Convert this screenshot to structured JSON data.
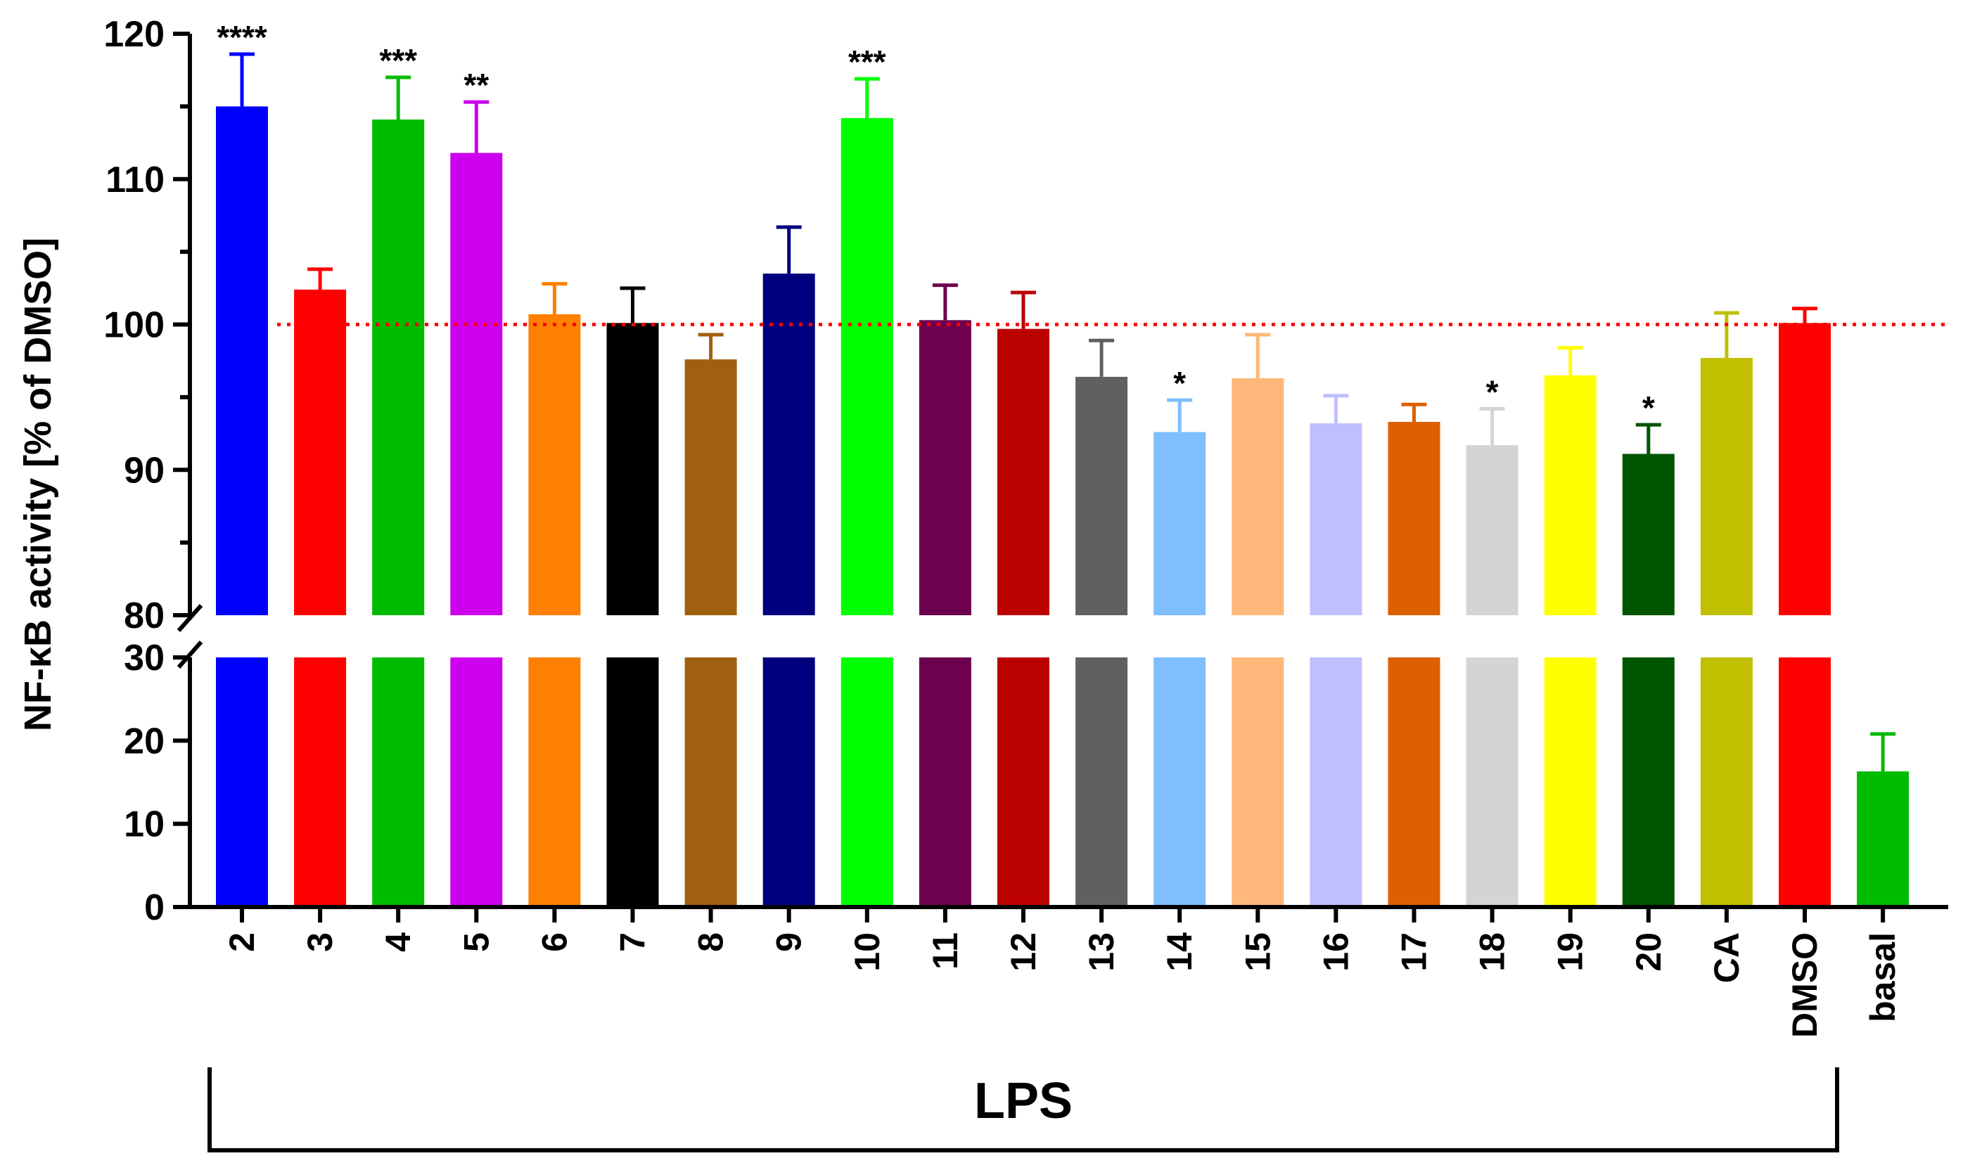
{
  "chart_data": {
    "type": "bar",
    "ylabel": "NF-κB activity [% of DMSO]",
    "group_label": "LPS",
    "reference_line": {
      "value": 100,
      "color": "#ff0000",
      "style": "dotted"
    },
    "axis_break": {
      "lower_range": [
        0,
        30
      ],
      "upper_range": [
        80,
        120
      ]
    },
    "lower_ticks": [
      0,
      10,
      20,
      30
    ],
    "upper_ticks": [
      80,
      90,
      100,
      110,
      120
    ],
    "categories": [
      "2",
      "3",
      "4",
      "5",
      "6",
      "7",
      "8",
      "9",
      "10",
      "11",
      "12",
      "13",
      "14",
      "15",
      "16",
      "17",
      "18",
      "19",
      "20",
      "CA",
      "DMSO",
      "basal"
    ],
    "values": [
      115.0,
      102.4,
      114.1,
      111.8,
      100.7,
      100.1,
      97.6,
      103.5,
      114.2,
      100.3,
      99.7,
      96.4,
      92.6,
      96.3,
      93.2,
      93.3,
      91.7,
      96.5,
      91.1,
      97.7,
      100.1,
      16.3
    ],
    "errors": [
      3.6,
      1.4,
      2.9,
      3.5,
      2.1,
      2.4,
      1.7,
      3.2,
      2.7,
      2.4,
      2.5,
      2.5,
      2.2,
      3.0,
      1.9,
      1.2,
      2.5,
      1.9,
      2.0,
      3.1,
      1.0,
      4.5
    ],
    "colors": [
      "#0000ff",
      "#ff0000",
      "#00bb00",
      "#cc00ee",
      "#ff8000",
      "#000000",
      "#a06010",
      "#00007f",
      "#00ff00",
      "#6e0050",
      "#bb0000",
      "#606060",
      "#7fbfff",
      "#ffb87a",
      "#bfbfff",
      "#dd6000",
      "#d4d4d4",
      "#ffff00",
      "#005500",
      "#c0c000",
      "#ff0000",
      "#00bb00"
    ],
    "significance": [
      "****",
      "",
      "***",
      "**",
      "",
      "",
      "",
      "",
      "***",
      "",
      "",
      "",
      "*",
      "",
      "",
      "",
      "*",
      "",
      "*",
      "",
      "",
      ""
    ]
  }
}
